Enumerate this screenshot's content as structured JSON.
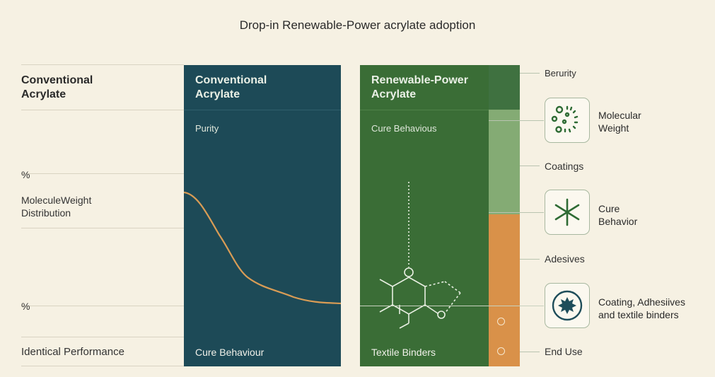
{
  "title": "Drop-in Renewable-Power acrylate adoption",
  "left": {
    "header": "Conventional\nAcrylate",
    "percent_top": "%",
    "molecule_label": "MoleculeWeight\nDistribution",
    "percent_bottom": "%",
    "footer": "Identical Performance"
  },
  "blue_panel": {
    "header": "Conventional\nAcrylate",
    "sub": "Purity",
    "footer": "Cure Behaviour"
  },
  "green_panel": {
    "header": "Renewable-Power\nAcrylate",
    "sub": "Cure Behavious",
    "footer": "Textile Binders"
  },
  "right": {
    "label_top": "Berurity",
    "icon1_label": "Molecular\nWeight",
    "label_coatings": "Coatings",
    "icon2_label": "Cure\nBehavior",
    "label_adhesives": "Adesives",
    "icon3_label": "Coating, Adhesiives\nand textile binders",
    "label_end": "End Use"
  },
  "icons": [
    "molecular-weight-icon",
    "cure-behavior-icon",
    "coating-icon"
  ],
  "colors": {
    "background": "#f6f1e3",
    "blue_panel": "#1d4a57",
    "green_panel": "#3a6d36",
    "curve": "#d99c55",
    "bar_dark": "#3f7140",
    "bar_light": "#84ab74",
    "bar_orange": "#d99149"
  }
}
